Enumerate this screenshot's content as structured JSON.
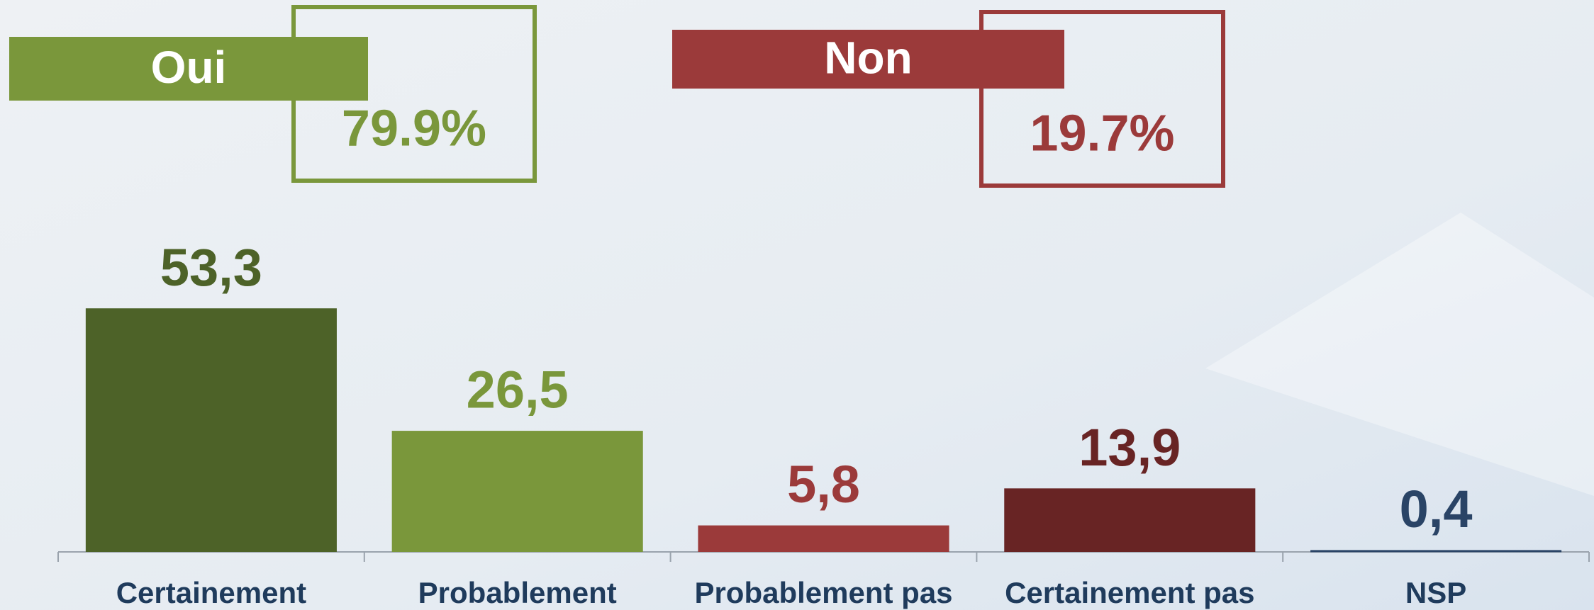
{
  "chart_data": {
    "type": "bar",
    "categories": [
      "Certainement",
      "Probablement",
      "Probablement pas",
      "Certainement pas",
      "NSP"
    ],
    "values": [
      53.3,
      26.5,
      5.8,
      13.9,
      0.4
    ],
    "value_labels": [
      "53,3",
      "26,5",
      "5,8",
      "13,9",
      "0,4"
    ],
    "colors": [
      "#4d6228",
      "#7a973b",
      "#9b3a3a",
      "#682424",
      "#2a4466"
    ],
    "ylim": [
      0,
      70
    ],
    "annotations": [
      {
        "label": "Oui",
        "value": 79.9,
        "value_label": "79.9%",
        "color": "#7a973b"
      },
      {
        "label": "Non",
        "value": 19.7,
        "value_label": "19.7%",
        "color": "#9b3a3a"
      }
    ]
  }
}
